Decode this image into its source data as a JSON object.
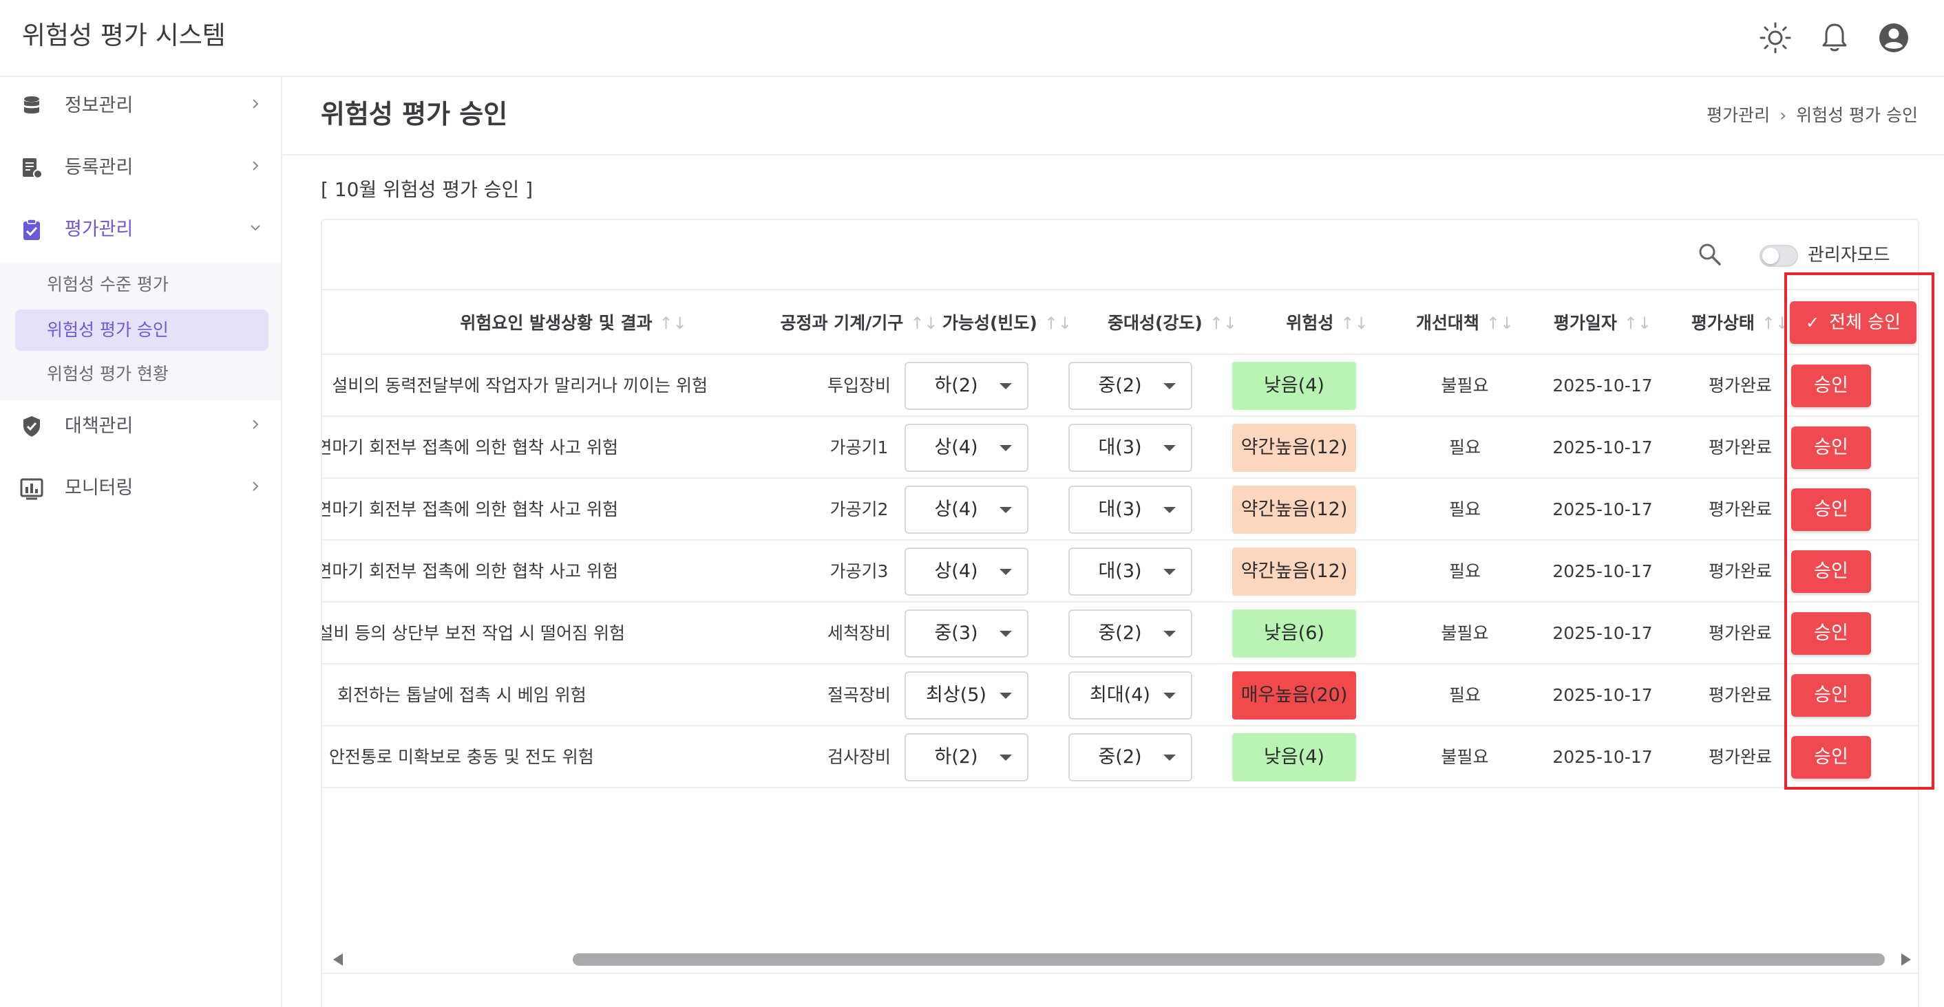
{
  "app": {
    "title": "위험성 평가 시스템"
  },
  "header_icons": [
    "sun-icon",
    "bell-icon",
    "account-icon"
  ],
  "sidebar": {
    "items": [
      {
        "label": "정보관리",
        "icon": "database-icon",
        "expanded": false
      },
      {
        "label": "등록관리",
        "icon": "register-icon",
        "expanded": false
      },
      {
        "label": "평가관리",
        "icon": "clipboard-check-icon",
        "expanded": true,
        "children": [
          {
            "label": "위험성 수준 평가",
            "active": false
          },
          {
            "label": "위험성 평가 승인",
            "active": true
          },
          {
            "label": "위험성 평가 현황",
            "active": false
          }
        ]
      },
      {
        "label": "대책관리",
        "icon": "shield-check-icon",
        "expanded": false
      },
      {
        "label": "모니터링",
        "icon": "chart-icon",
        "expanded": false
      }
    ]
  },
  "page": {
    "title": "위험성 평가 승인",
    "breadcrumb": [
      "평가관리",
      "위험성 평가 승인"
    ],
    "breadcrumb_sep": "›",
    "section_label": "[ 10월 위험성 평가 승인 ]"
  },
  "toolbar": {
    "admin_mode_label": "관리자모드",
    "admin_mode_on": false
  },
  "table": {
    "columns": {
      "hazard": "위험요인 발생상황 및 결과",
      "equipment": "공정과 기계/기구",
      "likelihood": "가능성(빈도)",
      "severity": "중대성(강도)",
      "risk": "위험성",
      "improvement": "개선대책",
      "date": "평가일자",
      "status": "평가상태"
    },
    "sort_glyph": "↑↓",
    "approve_all_label": "전체 승인",
    "approve_all_check": "✓",
    "approve_label": "승인",
    "rows": [
      {
        "hazard": "설비의 동력전달부에 작업자가 말리거나 끼이는 위험",
        "equipment": "투입장비",
        "likelihood": "하(2)",
        "severity": "중(2)",
        "risk": "낮음(4)",
        "risk_color": "#b8f5b3",
        "improvement": "불필요",
        "date": "2025-10-17",
        "status": "평가완료"
      },
      {
        "hazard": "가공기/연마기 회전부 접촉에 의한 협착 사고 위험",
        "equipment": "가공기1",
        "likelihood": "상(4)",
        "severity": "대(3)",
        "risk": "약간높음(12)",
        "risk_color": "#fcd7bd",
        "improvement": "필요",
        "date": "2025-10-17",
        "status": "평가완료"
      },
      {
        "hazard": "가공기/연마기 회전부 접촉에 의한 협착 사고 위험",
        "equipment": "가공기2",
        "likelihood": "상(4)",
        "severity": "대(3)",
        "risk": "약간높음(12)",
        "risk_color": "#fcd7bd",
        "improvement": "필요",
        "date": "2025-10-17",
        "status": "평가완료"
      },
      {
        "hazard": "가공기/연마기 회전부 접촉에 의한 협착 사고 위험",
        "equipment": "가공기3",
        "likelihood": "상(4)",
        "severity": "대(3)",
        "risk": "약간높음(12)",
        "risk_color": "#fcd7bd",
        "improvement": "필요",
        "date": "2025-10-17",
        "status": "평가완료"
      },
      {
        "hazard": "세척설비 등의 상단부 보전 작업 시 떨어짐 위험",
        "equipment": "세척장비",
        "likelihood": "중(3)",
        "severity": "중(2)",
        "risk": "낮음(6)",
        "risk_color": "#b8f5b3",
        "improvement": "불필요",
        "date": "2025-10-17",
        "status": "평가완료"
      },
      {
        "hazard": "회전하는 톱날에 접촉 시 베임 위험",
        "equipment": "절곡장비",
        "likelihood": "최상(5)",
        "severity": "최대(4)",
        "risk": "매우높음(20)",
        "risk_color": "#f24a4a",
        "improvement": "필요",
        "date": "2025-10-17",
        "status": "평가완료"
      },
      {
        "hazard": "안전통로 미확보로 충동 및 전도 위험",
        "equipment": "검사장비",
        "likelihood": "하(2)",
        "severity": "중(2)",
        "risk": "낮음(4)",
        "risk_color": "#b8f5b3",
        "improvement": "불필요",
        "date": "2025-10-17",
        "status": "평가완료"
      }
    ]
  }
}
